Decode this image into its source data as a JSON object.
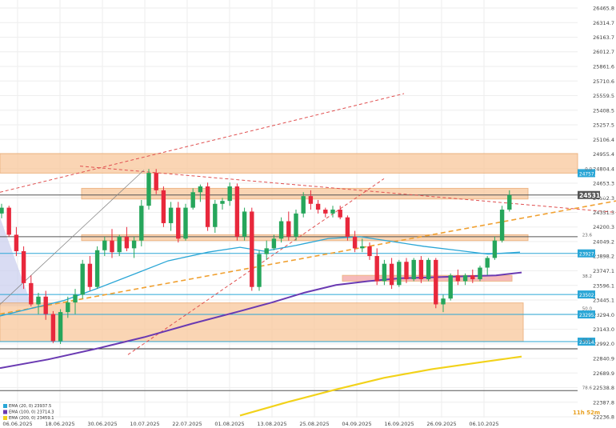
{
  "colors": {
    "up": "#26a65b",
    "down": "#e8283c",
    "zone": "#f9c89b",
    "zone_border": "#e8a060",
    "support_zone": "#f3a4a4",
    "ema20": "#2aa6d6",
    "ema100": "#6a3ab2",
    "ema200": "#f2d21a",
    "dash_red": "#e05050",
    "dash_orange": "#f0a030",
    "cone": "#c9cdee",
    "grid": "#eeeeee"
  },
  "chart_data": {
    "type": "candlestick",
    "ylim": [
      22236.8,
      26465.8
    ],
    "y_ticks": [
      "26465.8",
      "26314.7",
      "26163.7",
      "26012.7",
      "25861.6",
      "25710.6",
      "25559.5",
      "25408.5",
      "25257.5",
      "25106.4",
      "24955.4",
      "24804.4",
      "24653.3",
      "24502.3",
      "24351.3",
      "24200.3",
      "24049.2",
      "23898.2",
      "23747.1",
      "23596.1",
      "23445.1",
      "23294.0",
      "23143.0",
      "22992.0",
      "22840.9",
      "22689.9",
      "22538.8",
      "22387.8",
      "22236.8"
    ],
    "x_labels": [
      "06.06.2025",
      "18.06.2025",
      "30.06.2025",
      "10.07.2025",
      "22.07.2025",
      "01.08.2025",
      "13.08.2025",
      "25.08.2025",
      "04.09.2025",
      "16.09.2025",
      "26.09.2025",
      "06.10.2025"
    ],
    "price_tags": [
      {
        "label": "24531.3",
        "value": 24531.3,
        "color": "#555555"
      },
      {
        "label": "24757.6",
        "value": 24757.6,
        "color": "#2aa6d6"
      },
      {
        "label": "23927.4",
        "value": 23927.4,
        "color": "#2aa6d6"
      },
      {
        "label": "23502.3",
        "value": 23502.3,
        "color": "#2aa6d6"
      },
      {
        "label": "23295.7",
        "value": 23295.7,
        "color": "#2aa6d6"
      },
      {
        "label": "23014.5",
        "value": 23014.5,
        "color": "#2aa6d6"
      }
    ],
    "fib_labels": [
      {
        "label": "0.0",
        "value": 24770
      },
      {
        "label": "23.6",
        "value": 24085
      },
      {
        "label": "38.2",
        "value": 23662
      },
      {
        "label": "50.0",
        "value": 23325
      },
      {
        "label": "61.8",
        "value": 22995
      },
      {
        "label": "78.6",
        "value": 22505
      }
    ],
    "legend": [
      "EMA (20, 0) 23937.5",
      "EMA (100, 0) 23714.3",
      "EMA (200, 0) 23459.1"
    ],
    "timer": "11h 52m",
    "candles": [
      [
        24340,
        24440,
        24290,
        24400
      ],
      [
        24400,
        24420,
        24100,
        24120
      ],
      [
        24120,
        24200,
        23900,
        23950
      ],
      [
        23950,
        24000,
        23560,
        23620
      ],
      [
        23620,
        23700,
        23380,
        23400
      ],
      [
        23400,
        23520,
        23300,
        23480
      ],
      [
        23480,
        23540,
        23240,
        23300
      ],
      [
        23300,
        23330,
        23000,
        23020
      ],
      [
        23020,
        23350,
        22990,
        23320
      ],
      [
        23320,
        23480,
        23260,
        23420
      ],
      [
        23420,
        23560,
        23300,
        23500
      ],
      [
        23500,
        23860,
        23460,
        23820
      ],
      [
        23820,
        23900,
        23540,
        23580
      ],
      [
        23580,
        24000,
        23560,
        23960
      ],
      [
        23960,
        24100,
        23900,
        24060
      ],
      [
        24060,
        24180,
        23880,
        23940
      ],
      [
        23940,
        24120,
        23900,
        24100
      ],
      [
        24100,
        24200,
        23950,
        23980
      ],
      [
        23980,
        24100,
        23880,
        24060
      ],
      [
        24060,
        24480,
        24000,
        24420
      ],
      [
        24420,
        24800,
        24380,
        24760
      ],
      [
        24760,
        24800,
        24540,
        24580
      ],
      [
        24580,
        24620,
        24200,
        24240
      ],
      [
        24240,
        24460,
        24160,
        24400
      ],
      [
        24400,
        24460,
        24040,
        24080
      ],
      [
        24080,
        24440,
        24060,
        24400
      ],
      [
        24400,
        24600,
        24380,
        24560
      ],
      [
        24560,
        24640,
        24460,
        24620
      ],
      [
        24620,
        24660,
        24160,
        24200
      ],
      [
        24200,
        24480,
        24140,
        24440
      ],
      [
        24440,
        24500,
        24380,
        24470
      ],
      [
        24470,
        24660,
        24420,
        24620
      ],
      [
        24620,
        24650,
        24060,
        24100
      ],
      [
        24100,
        24400,
        24060,
        24360
      ],
      [
        24360,
        24400,
        23540,
        23580
      ],
      [
        23580,
        23960,
        23540,
        23920
      ],
      [
        23920,
        24060,
        23860,
        23980
      ],
      [
        23980,
        24120,
        23960,
        24080
      ],
      [
        24080,
        24300,
        24040,
        24260
      ],
      [
        24260,
        24360,
        24060,
        24100
      ],
      [
        24100,
        24380,
        24060,
        24340
      ],
      [
        24340,
        24560,
        24300,
        24520
      ],
      [
        24520,
        24580,
        24380,
        24440
      ],
      [
        24440,
        24480,
        24340,
        24380
      ],
      [
        24380,
        24400,
        24300,
        24340
      ],
      [
        24340,
        24420,
        24300,
        24380
      ],
      [
        24380,
        24420,
        24280,
        24300
      ],
      [
        24300,
        24320,
        24060,
        24100
      ],
      [
        24100,
        24160,
        23940,
        23980
      ],
      [
        23980,
        24080,
        23940,
        24000
      ],
      [
        24000,
        24040,
        23860,
        23900
      ],
      [
        23900,
        23980,
        23600,
        23640
      ],
      [
        23640,
        23860,
        23600,
        23820
      ],
      [
        23820,
        23880,
        23560,
        23600
      ],
      [
        23600,
        23860,
        23580,
        23840
      ],
      [
        23840,
        23880,
        23620,
        23660
      ],
      [
        23660,
        23880,
        23640,
        23860
      ],
      [
        23860,
        23900,
        23620,
        23660
      ],
      [
        23660,
        23880,
        23640,
        23860
      ],
      [
        23860,
        23880,
        23360,
        23400
      ],
      [
        23400,
        23500,
        23320,
        23460
      ],
      [
        23460,
        23720,
        23440,
        23700
      ],
      [
        23700,
        23760,
        23600,
        23640
      ],
      [
        23640,
        23720,
        23600,
        23700
      ],
      [
        23700,
        23760,
        23620,
        23660
      ],
      [
        23660,
        23800,
        23640,
        23780
      ],
      [
        23780,
        23900,
        23700,
        23880
      ],
      [
        23880,
        24100,
        23860,
        24060
      ],
      [
        24060,
        24420,
        24040,
        24380
      ],
      [
        24380,
        24580,
        24360,
        24531.3
      ]
    ]
  }
}
